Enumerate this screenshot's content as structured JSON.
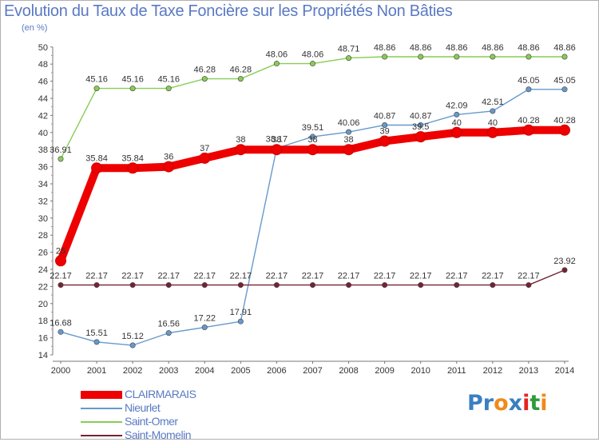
{
  "chart_data": {
    "type": "line",
    "title": "Evolution du Taux de Taxe Foncière sur les Propriétés Non Bâties",
    "subtitle": "(en %)",
    "ylim": [
      14,
      50
    ],
    "yticks": [
      14,
      16,
      18,
      20,
      22,
      24,
      26,
      28,
      30,
      32,
      34,
      36,
      38,
      40,
      42,
      44,
      46,
      48,
      50
    ],
    "categories": [
      "2000",
      "2001",
      "2002",
      "2003",
      "2004",
      "2005",
      "2006",
      "2007",
      "2008",
      "2009",
      "2010",
      "2011",
      "2012",
      "2013",
      "2014"
    ],
    "series": [
      {
        "name": "Saint-Omer",
        "color": "#88cc55",
        "values": [
          36.91,
          45.16,
          45.16,
          45.16,
          46.28,
          46.28,
          48.06,
          48.06,
          48.71,
          48.86,
          48.86,
          48.86,
          48.86,
          48.86,
          48.86
        ],
        "labels": [
          "36.91",
          "45.16",
          "45.16",
          "45.16",
          "46.28",
          "46.28",
          "48.06",
          "48.06",
          "48.71",
          "48.86",
          "48.86",
          "48.86",
          "48.86",
          "48.86",
          "48.86"
        ]
      },
      {
        "name": "Nieurlet",
        "color": "#6699cc",
        "values": [
          16.68,
          15.51,
          15.12,
          16.56,
          17.22,
          17.91,
          38.17,
          39.51,
          40.06,
          40.87,
          40.87,
          42.09,
          42.51,
          45.05,
          45.05
        ],
        "labels": [
          "16.68",
          "15.51",
          "15.12",
          "16.56",
          "17.22",
          "17.91",
          "38.17",
          "39.51",
          "40.06",
          "40.87",
          "40.87",
          "42.09",
          "42.51",
          "45.05",
          "45.05"
        ]
      },
      {
        "name": "Saint-Momelin",
        "color": "#772233",
        "values": [
          22.17,
          22.17,
          22.17,
          22.17,
          22.17,
          22.17,
          22.17,
          22.17,
          22.17,
          22.17,
          22.17,
          22.17,
          22.17,
          22.17,
          23.92
        ],
        "labels": [
          "22.17",
          "22.17",
          "22.17",
          "22.17",
          "22.17",
          "22.17",
          "22.17",
          "22.17",
          "22.17",
          "22.17",
          "22.17",
          "22.17",
          "22.17",
          "22.17",
          "23.92"
        ]
      },
      {
        "name": "CLAIRMARAIS",
        "color": "#ee0000",
        "values": [
          25,
          35.84,
          35.84,
          36,
          37,
          38,
          38,
          38,
          38,
          39,
          39.5,
          40,
          40,
          40.28,
          40.28
        ],
        "labels": [
          "25",
          "35.84",
          "35.84",
          "36",
          "37",
          "38",
          "38",
          "38",
          "38",
          "39",
          "39.5",
          "40",
          "40",
          "40.28",
          "40.28"
        ]
      }
    ],
    "legend": [
      "CLAIRMARAIS",
      "Nieurlet",
      "Saint-Omer",
      "Saint-Momelin"
    ],
    "grid": false
  },
  "logo": {
    "parts": [
      "Pr",
      "o",
      "x",
      "i",
      "t",
      "i"
    ],
    "colors": [
      "#3a7fc0",
      "#f08a1a",
      "#3a7fc0",
      "#e52320",
      "#2e9a3a",
      "#f08a1a"
    ]
  }
}
